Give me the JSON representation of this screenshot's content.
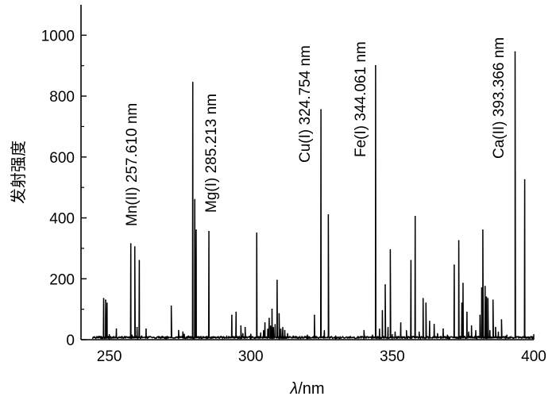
{
  "chart_data": {
    "type": "line",
    "xlabel_italic": "λ",
    "xlabel_unit": "/nm",
    "ylabel": "发射强度",
    "xlim": [
      240,
      400
    ],
    "ylim": [
      0,
      1100
    ],
    "xticks": [
      250,
      300,
      350,
      400
    ],
    "yticks": [
      0,
      200,
      400,
      600,
      800,
      1000
    ],
    "grid": false,
    "legend": "none",
    "line_color": "#000000",
    "annotations": [
      {
        "text": "Mn(II) 257.610 nm",
        "x": 257.6
      },
      {
        "text": "Mg(I) 285.213 nm",
        "x": 285.2
      },
      {
        "text": "Cu(I) 324.754 nm",
        "x": 324.8
      },
      {
        "text": "Fe(I) 344.061 nm",
        "x": 344.1
      },
      {
        "text": "Ca(II) 393.366 nm",
        "x": 393.4
      }
    ],
    "peaks": [
      {
        "x": 248.0,
        "y": 135
      },
      {
        "x": 248.7,
        "y": 130
      },
      {
        "x": 249.2,
        "y": 120
      },
      {
        "x": 252.5,
        "y": 35
      },
      {
        "x": 257.6,
        "y": 315
      },
      {
        "x": 259.0,
        "y": 305
      },
      {
        "x": 259.8,
        "y": 40
      },
      {
        "x": 260.6,
        "y": 260
      },
      {
        "x": 263.0,
        "y": 35
      },
      {
        "x": 271.9,
        "y": 110
      },
      {
        "x": 274.5,
        "y": 30
      },
      {
        "x": 276.0,
        "y": 25
      },
      {
        "x": 279.5,
        "y": 845
      },
      {
        "x": 280.2,
        "y": 460
      },
      {
        "x": 280.7,
        "y": 360
      },
      {
        "x": 285.2,
        "y": 355
      },
      {
        "x": 293.3,
        "y": 80
      },
      {
        "x": 294.8,
        "y": 90
      },
      {
        "x": 296.5,
        "y": 45
      },
      {
        "x": 298.0,
        "y": 40
      },
      {
        "x": 302.1,
        "y": 350
      },
      {
        "x": 305.0,
        "y": 55
      },
      {
        "x": 306.5,
        "y": 70
      },
      {
        "x": 307.5,
        "y": 100
      },
      {
        "x": 309.3,
        "y": 195
      },
      {
        "x": 310.0,
        "y": 85
      },
      {
        "x": 312.0,
        "y": 30
      },
      {
        "x": 322.5,
        "y": 80
      },
      {
        "x": 324.8,
        "y": 755
      },
      {
        "x": 327.4,
        "y": 410
      },
      {
        "x": 340.0,
        "y": 30
      },
      {
        "x": 344.1,
        "y": 900
      },
      {
        "x": 346.5,
        "y": 95
      },
      {
        "x": 347.5,
        "y": 180
      },
      {
        "x": 349.3,
        "y": 295
      },
      {
        "x": 353.0,
        "y": 55
      },
      {
        "x": 356.6,
        "y": 260
      },
      {
        "x": 358.1,
        "y": 405
      },
      {
        "x": 360.9,
        "y": 135
      },
      {
        "x": 361.9,
        "y": 120
      },
      {
        "x": 363.2,
        "y": 60
      },
      {
        "x": 364.8,
        "y": 50
      },
      {
        "x": 368.0,
        "y": 35
      },
      {
        "x": 371.9,
        "y": 245
      },
      {
        "x": 373.5,
        "y": 325
      },
      {
        "x": 374.6,
        "y": 120
      },
      {
        "x": 375.0,
        "y": 185
      },
      {
        "x": 376.4,
        "y": 90
      },
      {
        "x": 378.0,
        "y": 45
      },
      {
        "x": 381.0,
        "y": 80
      },
      {
        "x": 381.6,
        "y": 170
      },
      {
        "x": 382.0,
        "y": 360
      },
      {
        "x": 382.8,
        "y": 175
      },
      {
        "x": 383.3,
        "y": 140
      },
      {
        "x": 383.8,
        "y": 135
      },
      {
        "x": 385.6,
        "y": 130
      },
      {
        "x": 386.5,
        "y": 40
      },
      {
        "x": 388.6,
        "y": 65
      },
      {
        "x": 393.4,
        "y": 945
      },
      {
        "x": 396.8,
        "y": 525
      }
    ],
    "baseline_bumps": [
      {
        "x": 258.0,
        "y": 15
      },
      {
        "x": 261.5,
        "y": 12
      },
      {
        "x": 268.5,
        "y": 10
      },
      {
        "x": 276.5,
        "y": 18
      },
      {
        "x": 278.0,
        "y": 12
      },
      {
        "x": 283.0,
        "y": 10
      },
      {
        "x": 288.0,
        "y": 8
      },
      {
        "x": 291.5,
        "y": 12
      },
      {
        "x": 297.2,
        "y": 20
      },
      {
        "x": 300.0,
        "y": 18
      },
      {
        "x": 303.5,
        "y": 22
      },
      {
        "x": 304.5,
        "y": 30
      },
      {
        "x": 306.0,
        "y": 35
      },
      {
        "x": 307.0,
        "y": 45
      },
      {
        "x": 308.0,
        "y": 40
      },
      {
        "x": 308.6,
        "y": 50
      },
      {
        "x": 310.6,
        "y": 35
      },
      {
        "x": 311.3,
        "y": 40
      },
      {
        "x": 313.0,
        "y": 20
      },
      {
        "x": 315.0,
        "y": 12
      },
      {
        "x": 318.0,
        "y": 10
      },
      {
        "x": 320.0,
        "y": 15
      },
      {
        "x": 326.0,
        "y": 30
      },
      {
        "x": 330.0,
        "y": 12
      },
      {
        "x": 335.0,
        "y": 8
      },
      {
        "x": 338.0,
        "y": 10
      },
      {
        "x": 343.0,
        "y": 15
      },
      {
        "x": 345.5,
        "y": 35
      },
      {
        "x": 348.5,
        "y": 40
      },
      {
        "x": 351.0,
        "y": 25
      },
      {
        "x": 355.0,
        "y": 30
      },
      {
        "x": 359.5,
        "y": 25
      },
      {
        "x": 366.0,
        "y": 20
      },
      {
        "x": 369.5,
        "y": 15
      },
      {
        "x": 377.0,
        "y": 25
      },
      {
        "x": 379.5,
        "y": 30
      },
      {
        "x": 384.5,
        "y": 30
      },
      {
        "x": 387.5,
        "y": 25
      },
      {
        "x": 390.5,
        "y": 15
      },
      {
        "x": 392.0,
        "y": 10
      },
      {
        "x": 395.0,
        "y": 8
      },
      {
        "x": 398.5,
        "y": 5
      }
    ]
  }
}
